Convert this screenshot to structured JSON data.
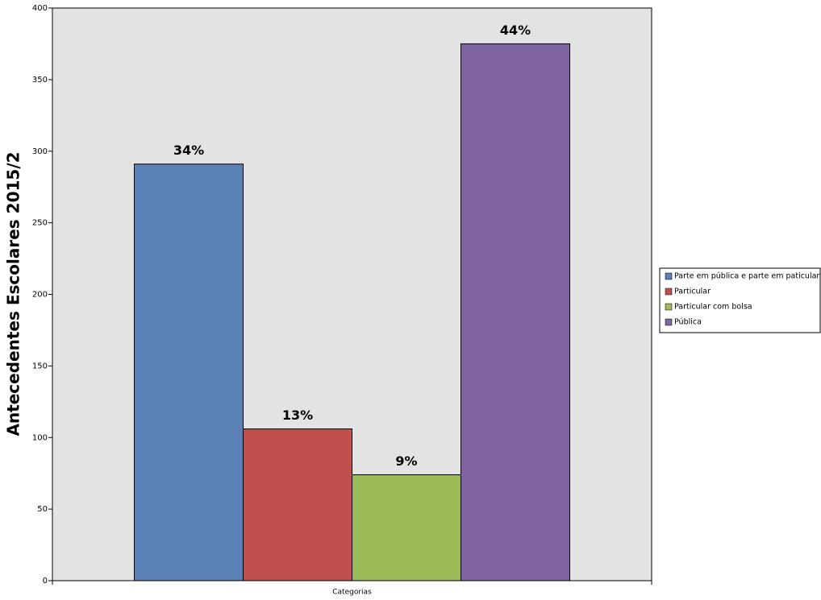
{
  "chart_data": {
    "type": "bar",
    "y_label": "Antecedentes Escolares 2015/2",
    "categories": [
      "Categorias"
    ],
    "series": [
      {
        "name": "Parte em pública e parte em paticular",
        "color": "#5b80b6",
        "values": [
          291
        ],
        "value_labels": [
          "34%"
        ]
      },
      {
        "name": "Particular",
        "color": "#c0504d",
        "values": [
          106
        ],
        "value_labels": [
          "13%"
        ]
      },
      {
        "name": "Particular com bolsa",
        "color": "#9bbb59",
        "values": [
          74
        ],
        "value_labels": [
          "9%"
        ]
      },
      {
        "name": "Pública",
        "color": "#8064a2",
        "values": [
          375
        ],
        "value_labels": [
          "44%"
        ]
      }
    ],
    "ylim": [
      0,
      400
    ],
    "yticks": [
      0,
      50,
      100,
      150,
      200,
      250,
      300,
      350,
      400
    ],
    "grid": false,
    "legend": "right"
  }
}
